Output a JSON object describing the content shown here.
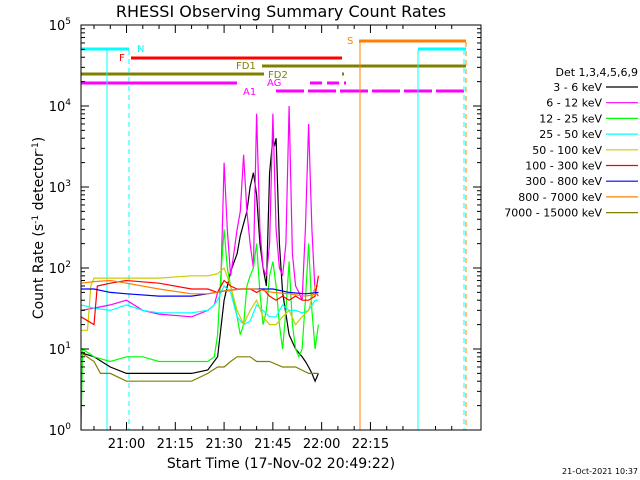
{
  "chart_data": {
    "type": "line",
    "title": "RHESSI Observing Summary Count Rates",
    "xlabel": "Start Time (17-Nov-02 20:49:22)",
    "ylabel": "Count Rate (s",
    "ylabel_sup": "-1",
    "ylabel_rest": " detector",
    "ylabel_close": ")",
    "x_start_minutes": -14,
    "x_end_minutes": 109,
    "ylim": [
      1,
      100000
    ],
    "yscale": "log",
    "x_ticks": [
      {
        "label": "21:00",
        "minute": 0
      },
      {
        "label": "21:15",
        "minute": 15
      },
      {
        "label": "21:30",
        "minute": 30
      },
      {
        "label": "21:45",
        "minute": 45
      },
      {
        "label": "22:00",
        "minute": 60
      },
      {
        "label": "22:15",
        "minute": 75
      }
    ],
    "y_ticks": [
      {
        "base": "10",
        "exp": "0",
        "value": 1
      },
      {
        "base": "10",
        "exp": "1",
        "value": 10
      },
      {
        "base": "10",
        "exp": "2",
        "value": 100
      },
      {
        "base": "10",
        "exp": "3",
        "value": 1000
      },
      {
        "base": "10",
        "exp": "4",
        "value": 10000
      },
      {
        "base": "10",
        "exp": "5",
        "value": 100000
      }
    ],
    "legend_title": "Det 1,3,4,5,6,9",
    "legend_position": "right",
    "series": [
      {
        "name": "3 - 6 keV",
        "color": "#000000",
        "points": [
          [
            -14,
            9
          ],
          [
            -10,
            8
          ],
          [
            -5,
            6
          ],
          [
            0,
            5
          ],
          [
            10,
            5
          ],
          [
            20,
            5
          ],
          [
            25,
            5.5
          ],
          [
            28,
            8
          ],
          [
            30,
            40
          ],
          [
            32,
            90
          ],
          [
            34,
            150
          ],
          [
            35,
            250
          ],
          [
            37,
            500
          ],
          [
            38,
            1000
          ],
          [
            39,
            1500
          ],
          [
            40,
            800
          ],
          [
            41,
            200
          ],
          [
            42,
            100
          ],
          [
            43,
            60
          ],
          [
            44,
            1500
          ],
          [
            45,
            4000
          ],
          [
            45.5,
            3200
          ],
          [
            46,
            4000
          ],
          [
            47,
            200
          ],
          [
            48,
            50
          ],
          [
            50,
            15
          ],
          [
            52,
            10
          ],
          [
            54,
            8
          ],
          [
            55,
            7
          ],
          [
            56,
            6
          ],
          [
            57,
            5
          ],
          [
            58,
            4
          ],
          [
            59,
            5
          ]
        ]
      },
      {
        "name": "6 - 12 keV",
        "color": "#ff00ff",
        "points": [
          [
            -14,
            30
          ],
          [
            -10,
            32
          ],
          [
            -5,
            35
          ],
          [
            0,
            40
          ],
          [
            5,
            30
          ],
          [
            10,
            27
          ],
          [
            20,
            25
          ],
          [
            25,
            30
          ],
          [
            27,
            35
          ],
          [
            28,
            50
          ],
          [
            29,
            60
          ],
          [
            30,
            2000
          ],
          [
            31,
            300
          ],
          [
            32,
            80
          ],
          [
            33,
            150
          ],
          [
            34,
            300
          ],
          [
            35,
            500
          ],
          [
            36,
            2500
          ],
          [
            37,
            500
          ],
          [
            38,
            200
          ],
          [
            39,
            100
          ],
          [
            40,
            8000
          ],
          [
            41,
            300
          ],
          [
            42,
            100
          ],
          [
            43,
            80
          ],
          [
            44,
            200
          ],
          [
            45,
            8000
          ],
          [
            46,
            300
          ],
          [
            47,
            100
          ],
          [
            48,
            80
          ],
          [
            49,
            200
          ],
          [
            50,
            10000
          ],
          [
            51,
            150
          ],
          [
            52,
            60
          ],
          [
            53,
            50
          ],
          [
            54,
            40
          ],
          [
            55,
            300
          ],
          [
            56,
            6000
          ],
          [
            57,
            300
          ],
          [
            58,
            50
          ],
          [
            59,
            45
          ]
        ]
      },
      {
        "name": "12 - 25 keV",
        "color": "#00ff00",
        "points": [
          [
            -14,
            1
          ],
          [
            -13.5,
            10
          ],
          [
            -10,
            8
          ],
          [
            -5,
            7
          ],
          [
            0,
            8
          ],
          [
            5,
            8
          ],
          [
            10,
            7
          ],
          [
            20,
            7
          ],
          [
            25,
            7
          ],
          [
            27,
            8
          ],
          [
            28,
            15
          ],
          [
            29,
            80
          ],
          [
            30,
            300
          ],
          [
            31,
            100
          ],
          [
            32,
            60
          ],
          [
            33,
            40
          ],
          [
            34,
            25
          ],
          [
            35,
            15
          ],
          [
            36,
            20
          ],
          [
            37,
            60
          ],
          [
            38,
            80
          ],
          [
            39,
            100
          ],
          [
            40,
            200
          ],
          [
            41,
            50
          ],
          [
            42,
            20
          ],
          [
            43,
            30
          ],
          [
            44,
            80
          ],
          [
            45,
            120
          ],
          [
            46,
            60
          ],
          [
            47,
            20
          ],
          [
            48,
            10
          ],
          [
            49,
            30
          ],
          [
            50,
            120
          ],
          [
            51,
            20
          ],
          [
            52,
            10
          ],
          [
            53,
            8
          ],
          [
            54,
            10
          ],
          [
            55,
            40
          ],
          [
            56,
            200
          ],
          [
            57,
            30
          ],
          [
            58,
            10
          ],
          [
            59,
            20
          ]
        ]
      },
      {
        "name": "25 - 50 keV",
        "color": "#00ffff",
        "points": [
          [
            -14,
            35
          ],
          [
            -10,
            32
          ],
          [
            -5,
            30
          ],
          [
            0,
            35
          ],
          [
            5,
            30
          ],
          [
            10,
            28
          ],
          [
            20,
            28
          ],
          [
            25,
            30
          ],
          [
            27,
            35
          ],
          [
            28,
            40
          ],
          [
            30,
            60
          ],
          [
            32,
            50
          ],
          [
            34,
            25
          ],
          [
            36,
            20
          ],
          [
            38,
            22
          ],
          [
            40,
            35
          ],
          [
            42,
            30
          ],
          [
            44,
            25
          ],
          [
            46,
            25
          ],
          [
            48,
            35
          ],
          [
            50,
            30
          ],
          [
            52,
            30
          ],
          [
            54,
            28
          ],
          [
            56,
            30
          ],
          [
            58,
            40
          ],
          [
            59,
            40
          ]
        ]
      },
      {
        "name": "50 - 100 keV",
        "color": "#cccc00",
        "points": [
          [
            -14,
            17
          ],
          [
            -12,
            17
          ],
          [
            -11,
            60
          ],
          [
            -10,
            75
          ],
          [
            -5,
            75
          ],
          [
            0,
            75
          ],
          [
            10,
            75
          ],
          [
            20,
            80
          ],
          [
            25,
            80
          ],
          [
            28,
            85
          ],
          [
            30,
            100
          ],
          [
            32,
            60
          ],
          [
            34,
            30
          ],
          [
            36,
            20
          ],
          [
            38,
            30
          ],
          [
            40,
            40
          ],
          [
            42,
            25
          ],
          [
            44,
            20
          ],
          [
            46,
            20
          ],
          [
            48,
            25
          ],
          [
            50,
            30
          ],
          [
            52,
            20
          ],
          [
            54,
            25
          ],
          [
            56,
            30
          ],
          [
            58,
            60
          ],
          [
            59,
            60
          ]
        ]
      },
      {
        "name": "100 - 300 keV",
        "color": "#ff0000",
        "points": [
          [
            -14,
            25
          ],
          [
            -10,
            20
          ],
          [
            -9,
            60
          ],
          [
            -5,
            65
          ],
          [
            0,
            70
          ],
          [
            10,
            65
          ],
          [
            20,
            55
          ],
          [
            25,
            55
          ],
          [
            28,
            50
          ],
          [
            30,
            70
          ],
          [
            32,
            60
          ],
          [
            34,
            55
          ],
          [
            36,
            55
          ],
          [
            38,
            55
          ],
          [
            40,
            50
          ],
          [
            42,
            55
          ],
          [
            44,
            45
          ],
          [
            46,
            40
          ],
          [
            48,
            45
          ],
          [
            50,
            40
          ],
          [
            52,
            45
          ],
          [
            54,
            40
          ],
          [
            56,
            40
          ],
          [
            58,
            45
          ],
          [
            59,
            80
          ]
        ]
      },
      {
        "name": "300 - 800 keV",
        "color": "#0000ff",
        "points": [
          [
            -14,
            55
          ],
          [
            -10,
            55
          ],
          [
            -5,
            50
          ],
          [
            0,
            48
          ],
          [
            10,
            45
          ],
          [
            20,
            45
          ],
          [
            25,
            48
          ],
          [
            30,
            52
          ],
          [
            35,
            55
          ],
          [
            40,
            55
          ],
          [
            45,
            55
          ],
          [
            50,
            50
          ],
          [
            55,
            48
          ],
          [
            59,
            50
          ]
        ]
      },
      {
        "name": "800 - 7000 keV",
        "color": "#ff8000",
        "points": [
          [
            -14,
            65
          ],
          [
            -10,
            68
          ],
          [
            -5,
            70
          ],
          [
            0,
            65
          ],
          [
            10,
            55
          ],
          [
            20,
            48
          ],
          [
            25,
            48
          ],
          [
            30,
            52
          ],
          [
            35,
            55
          ],
          [
            40,
            55
          ],
          [
            45,
            50
          ],
          [
            50,
            48
          ],
          [
            55,
            45
          ],
          [
            59,
            48
          ]
        ]
      },
      {
        "name": "7000 - 15000 keV",
        "color": "#808000",
        "points": [
          [
            -14,
            9
          ],
          [
            -10,
            7
          ],
          [
            -8,
            5
          ],
          [
            -5,
            5
          ],
          [
            0,
            4
          ],
          [
            10,
            4
          ],
          [
            20,
            4
          ],
          [
            25,
            5
          ],
          [
            28,
            6
          ],
          [
            30,
            6
          ],
          [
            32,
            7
          ],
          [
            34,
            8
          ],
          [
            38,
            8
          ],
          [
            40,
            7
          ],
          [
            44,
            7
          ],
          [
            48,
            6
          ],
          [
            52,
            6
          ],
          [
            56,
            5
          ],
          [
            59,
            5
          ]
        ]
      }
    ],
    "annotations": [
      {
        "label": "N",
        "color": "#00ffff"
      },
      {
        "label": "F",
        "color": "#ff0000"
      },
      {
        "label": "FD1",
        "color": "#808000"
      },
      {
        "label": "FD2",
        "color": "#808000"
      },
      {
        "label": "AG",
        "color": "#ff00ff"
      },
      {
        "label": "A1",
        "color": "#ff00ff"
      },
      {
        "label": "S",
        "color": "#ff8000"
      }
    ]
  },
  "footer": {
    "timestamp": "21-Oct-2021 10:37"
  }
}
